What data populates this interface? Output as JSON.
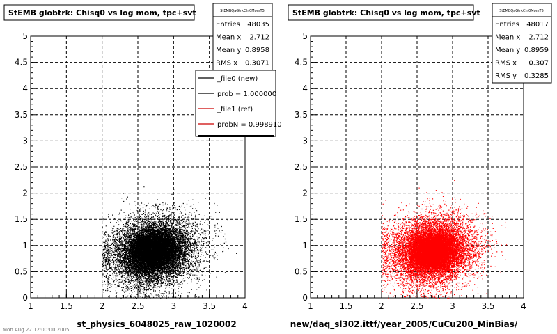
{
  "canvas": {
    "footer_text": "Mon Aug 22 12:00:00 2005"
  },
  "panels": [
    {
      "title": "StEMB globtrk: Chisq0 vs log mom, tpc+svt",
      "xlabel": "st_physics_6048025_raw_1020002",
      "stats": {
        "name": "StEMBQaGtrkChi0MomT5",
        "rows": [
          {
            "label": "Entries",
            "value": "48035"
          },
          {
            "label": "Mean x",
            "value": "2.712"
          },
          {
            "label": "Mean y",
            "value": "0.8958"
          },
          {
            "label": "RMS x",
            "value": "0.3071"
          }
        ]
      },
      "legend": [
        {
          "label": "_file0 (new)",
          "color": "#000000"
        },
        {
          "label": "prob = 1.000000",
          "color": "#000000"
        },
        {
          "label": "_file1 (ref)",
          "color": "#cc0000"
        },
        {
          "label": "probN = 0.998910",
          "color": "#cc0000"
        }
      ],
      "marker_color": "#000000"
    },
    {
      "title": "StEMB globtrk: Chisq0 vs log mom, tpc+svt",
      "xlabel": "new/daq_sl302.ittf/year_2005/CuCu200_MinBias/",
      "stats": {
        "name": "StEMBQaGtrkChi0MomT5",
        "rows": [
          {
            "label": "Entries",
            "value": "48017"
          },
          {
            "label": "Mean x",
            "value": "2.712"
          },
          {
            "label": "Mean y",
            "value": "0.8959"
          },
          {
            "label": "RMS x",
            "value": "0.307"
          },
          {
            "label": "RMS y",
            "value": "0.3285"
          }
        ]
      },
      "legend": [],
      "marker_color": "#ff0000"
    }
  ],
  "chart_data": [
    {
      "type": "scatter",
      "title": "StEMB globtrk: Chisq0 vs log mom, tpc+svt",
      "xlabel": "st_physics_6048025_raw_1020002",
      "ylabel": "",
      "xlim": [
        1,
        4
      ],
      "ylim": [
        0,
        5
      ],
      "xticks": [
        "1",
        "1.5",
        "2",
        "2.5",
        "3",
        "3.5",
        "4"
      ],
      "yticks": [
        "0",
        "0.5",
        "1",
        "1.5",
        "2",
        "2.5",
        "3",
        "3.5",
        "4",
        "4.5",
        "5"
      ],
      "grid": true,
      "entries": 48035,
      "mean_x": 2.712,
      "mean_y": 0.8958,
      "rms_x": 0.3071,
      "series": [
        {
          "name": "_file0 (new)",
          "color": "#000000"
        }
      ]
    },
    {
      "type": "scatter",
      "title": "StEMB globtrk: Chisq0 vs log mom, tpc+svt",
      "xlabel": "new/daq_sl302.ittf/year_2005/CuCu200_MinBias/",
      "ylabel": "",
      "xlim": [
        1,
        4
      ],
      "ylim": [
        0,
        5
      ],
      "xticks": [
        "1",
        "1.5",
        "2",
        "2.5",
        "3",
        "3.5",
        "4"
      ],
      "yticks": [
        "0",
        "0.5",
        "1",
        "1.5",
        "2",
        "2.5",
        "3",
        "3.5",
        "4",
        "4.5",
        "5"
      ],
      "grid": true,
      "entries": 48017,
      "mean_x": 2.712,
      "mean_y": 0.8959,
      "rms_x": 0.307,
      "rms_y": 0.3285,
      "series": [
        {
          "name": "_file1 (ref)",
          "color": "#ff0000"
        }
      ]
    }
  ]
}
